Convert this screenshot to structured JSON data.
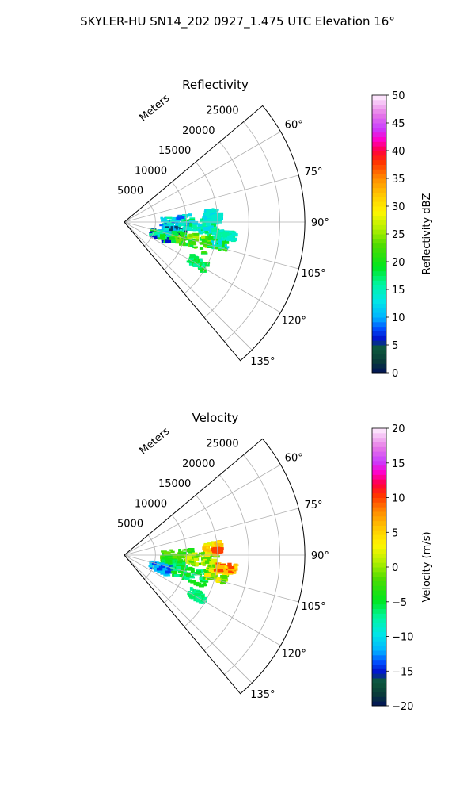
{
  "figure": {
    "suptitle": "SKYLER-HU  SN14_202  0927_1.475 UTC Elevation 16°"
  },
  "chart_data": [
    {
      "type": "polar",
      "title": "Reflectivity",
      "radial_label": "Meters",
      "radial_ticks": [
        5000,
        10000,
        15000,
        20000,
        25000
      ],
      "angle_ticks": [
        60,
        75,
        90,
        105,
        120,
        135
      ],
      "angle_tick_labels": [
        "60°",
        "75°",
        "90°",
        "105°",
        "120°",
        "135°"
      ],
      "angle_range_deg": [
        50,
        140
      ],
      "r_max": 29000,
      "grid": true,
      "colorbar": {
        "label": "Reflectivity dBZ",
        "range": [
          0,
          50
        ],
        "ticks": [
          0,
          5,
          10,
          15,
          20,
          25,
          30,
          35,
          40,
          45,
          50
        ],
        "tick_labels": [
          "0",
          "5",
          "10",
          "15",
          "20",
          "25",
          "30",
          "35",
          "40",
          "45",
          "50"
        ]
      },
      "echoes": [
        {
          "az_range": [
            84,
            96
          ],
          "r_range": [
            6000,
            11000
          ],
          "values": [
            8,
            12,
            14,
            16
          ]
        },
        {
          "az_range": [
            88,
            98
          ],
          "r_range": [
            10000,
            15000
          ],
          "values": [
            12,
            14,
            16,
            18
          ]
        },
        {
          "az_range": [
            82,
            90
          ],
          "r_range": [
            13000,
            15500
          ],
          "values": [
            12,
            14
          ]
        },
        {
          "az_range": [
            96,
            106
          ],
          "r_range": [
            6000,
            10000
          ],
          "values": [
            5,
            10,
            12,
            14
          ]
        },
        {
          "az_range": [
            104,
            116
          ],
          "r_range": [
            4500,
            8000
          ],
          "values": [
            6,
            12,
            16,
            20
          ]
        },
        {
          "az_range": [
            100,
            112
          ],
          "r_range": [
            8000,
            14000
          ],
          "values": [
            18,
            20,
            22,
            24,
            26
          ]
        },
        {
          "az_range": [
            98,
            106
          ],
          "r_range": [
            13500,
            17000
          ],
          "values": [
            12,
            16,
            20,
            22
          ]
        },
        {
          "az_range": [
            95,
            100
          ],
          "r_range": [
            15000,
            18000
          ],
          "values": [
            14,
            16
          ]
        },
        {
          "az_range": [
            116,
            122
          ],
          "r_range": [
            12000,
            15000
          ],
          "values": [
            16,
            18,
            20
          ]
        },
        {
          "az_range": [
            86,
            88
          ],
          "r_range": [
            14500,
            15500
          ],
          "values": [
            14
          ]
        }
      ]
    },
    {
      "type": "polar",
      "title": "Velocity",
      "radial_label": "Meters",
      "radial_ticks": [
        5000,
        10000,
        15000,
        20000,
        25000
      ],
      "angle_ticks": [
        60,
        75,
        90,
        105,
        120,
        135
      ],
      "angle_tick_labels": [
        "60°",
        "75°",
        "90°",
        "105°",
        "120°",
        "135°"
      ],
      "angle_range_deg": [
        50,
        140
      ],
      "r_max": 29000,
      "grid": true,
      "colorbar": {
        "label": "Velocity (m/s)",
        "range": [
          -20,
          20
        ],
        "ticks": [
          -20,
          -15,
          -10,
          -5,
          0,
          5,
          10,
          15,
          20
        ],
        "tick_labels": [
          "−20",
          "−15",
          "−10",
          "−5",
          "0",
          "5",
          "10",
          "15",
          "20"
        ]
      },
      "echoes": [
        {
          "az_range": [
            84,
            96
          ],
          "r_range": [
            6000,
            11000
          ],
          "values": [
            -4,
            -2,
            -1
          ]
        },
        {
          "az_range": [
            88,
            98
          ],
          "r_range": [
            10000,
            15000
          ],
          "values": [
            -2,
            0,
            2
          ]
        },
        {
          "az_range": [
            82,
            90
          ],
          "r_range": [
            13000,
            15500
          ],
          "values": [
            2,
            4,
            6
          ]
        },
        {
          "az_range": [
            96,
            106
          ],
          "r_range": [
            6000,
            10000
          ],
          "values": [
            -4,
            -6
          ]
        },
        {
          "az_range": [
            104,
            116
          ],
          "r_range": [
            4500,
            8000
          ],
          "values": [
            -12,
            -11,
            -10,
            -14
          ]
        },
        {
          "az_range": [
            100,
            112
          ],
          "r_range": [
            8000,
            14000
          ],
          "values": [
            -7,
            -5,
            -4
          ]
        },
        {
          "az_range": [
            98,
            106
          ],
          "r_range": [
            13500,
            17000
          ],
          "values": [
            -2,
            0,
            2,
            4
          ]
        },
        {
          "az_range": [
            95,
            100
          ],
          "r_range": [
            15000,
            18000
          ],
          "values": [
            4,
            6,
            10
          ]
        },
        {
          "az_range": [
            116,
            122
          ],
          "r_range": [
            12000,
            15000
          ],
          "values": [
            -7,
            -6
          ]
        },
        {
          "az_range": [
            86,
            88
          ],
          "r_range": [
            14500,
            15500
          ],
          "values": [
            10
          ]
        }
      ]
    }
  ]
}
